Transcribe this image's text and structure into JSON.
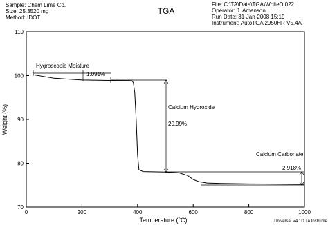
{
  "chart_data": {
    "type": "line",
    "title": "TGA",
    "header_left": [
      "Sample: Chem Lime Co.",
      "Size: 25.3520 mg",
      "Method: IDOT"
    ],
    "header_right": [
      "File: C:\\TA\\Data\\TGA\\WhiteD.022",
      "Operator: J. Amenson",
      "Run Date: 31-Jan-2008 15:19",
      "Instrument: AutoTGA 2950HR V5.4A"
    ],
    "footer": "Universal V4.1D TA Instrume",
    "x_label": "Temperature (°C)",
    "y_label": "Weight (%)",
    "annotations": [
      "Hygroscopic Moisture",
      "1.091%",
      "Calcium Hydroxide",
      "20.99%",
      "Calcium Carbonate",
      "2.918%"
    ],
    "x": [
      25,
      100,
      200,
      300,
      380,
      385,
      390,
      395,
      400,
      405,
      420,
      500,
      550,
      580,
      600,
      620,
      650,
      700,
      800,
      1000
    ],
    "values": [
      100.2,
      99.4,
      99.0,
      98.9,
      98.8,
      98.4,
      96,
      90,
      82,
      78.5,
      78.1,
      78.0,
      77.8,
      77.2,
      76.3,
      75.8,
      75.5,
      75.4,
      75.3,
      75.2
    ],
    "color": "#000000",
    "xlim": [
      0,
      1000
    ],
    "xticks": [
      0,
      200,
      400,
      600,
      800,
      1000
    ],
    "ylim": [
      70,
      110
    ],
    "yticks": [
      70,
      80,
      90,
      100,
      110
    ]
  }
}
